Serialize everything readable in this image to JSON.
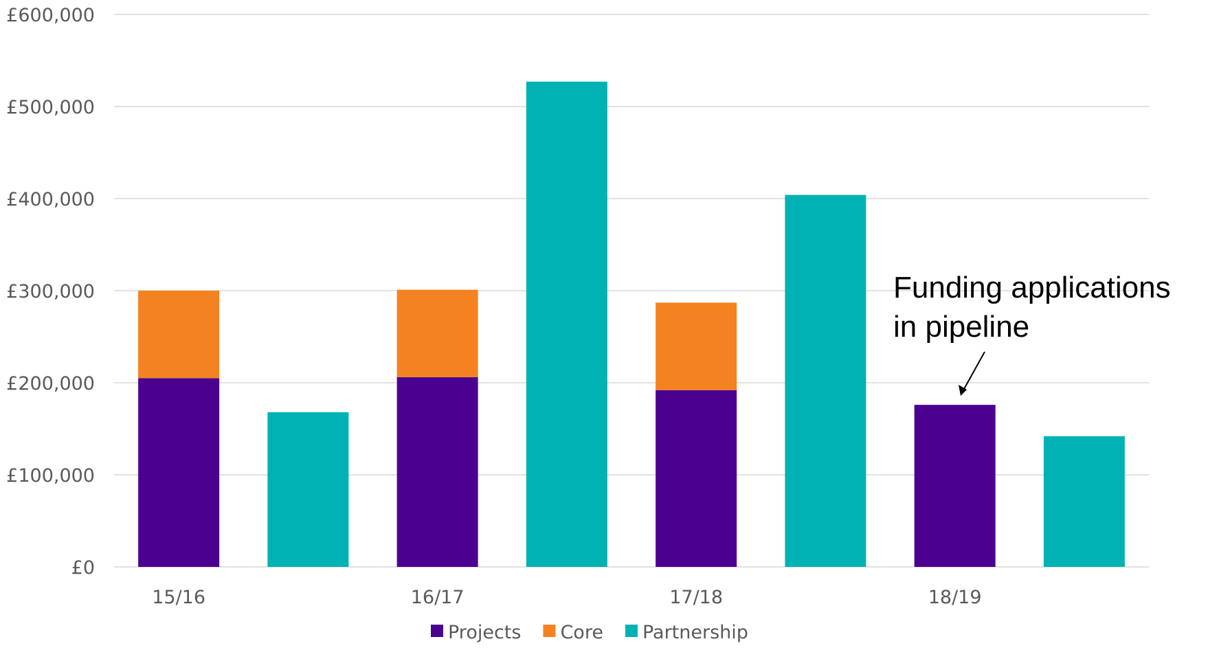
{
  "chart_data": {
    "type": "bar",
    "stacked": true,
    "categories": [
      "15/16",
      "",
      "16/17",
      "",
      "17/18",
      "",
      "18/19",
      ""
    ],
    "series": [
      {
        "name": "Projects",
        "color": "#4b0090",
        "values": [
          205000,
          0,
          206000,
          0,
          192000,
          0,
          176000,
          0
        ]
      },
      {
        "name": "Core",
        "color": "#f58220",
        "values": [
          95000,
          0,
          95000,
          0,
          95000,
          0,
          0,
          0
        ]
      },
      {
        "name": "Partnership",
        "color": "#00b2b4",
        "values": [
          0,
          168000,
          0,
          527000,
          0,
          404000,
          0,
          142000
        ]
      }
    ],
    "ylim": [
      0,
      600000
    ],
    "yticks": [
      "£0",
      "£100,000",
      "£200,000",
      "£300,000",
      "£400,000",
      "£500,000",
      "£600,000"
    ],
    "grid": true,
    "gridcolor": "#d9d9d9",
    "legend_position": "bottom",
    "annotation": {
      "lines": [
        "Funding applications",
        "in pipeline"
      ],
      "target_category_index": 6
    }
  }
}
